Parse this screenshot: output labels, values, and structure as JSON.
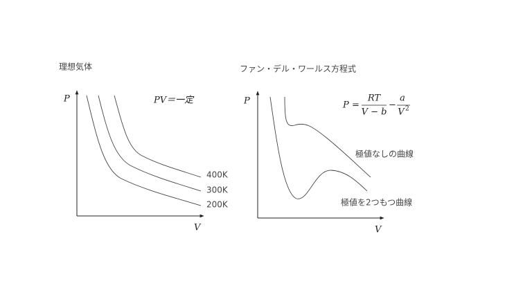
{
  "left": {
    "title": "理想気体",
    "y_label": "P",
    "x_label": "V",
    "equation": "PV＝一定",
    "curves": [
      "400K",
      "300K",
      "200K"
    ]
  },
  "right": {
    "title": "ファン・デル・ワールス方程式",
    "y_label": "P",
    "x_label": "V",
    "equation": {
      "lhs": "P",
      "eq": "=",
      "num1": "RT",
      "den1": "V − b",
      "minus": "−",
      "num2": "a",
      "den2": "V",
      "exp": "2"
    },
    "curves": [
      "極値なしの曲線",
      "極値を2つもつ曲線"
    ]
  }
}
